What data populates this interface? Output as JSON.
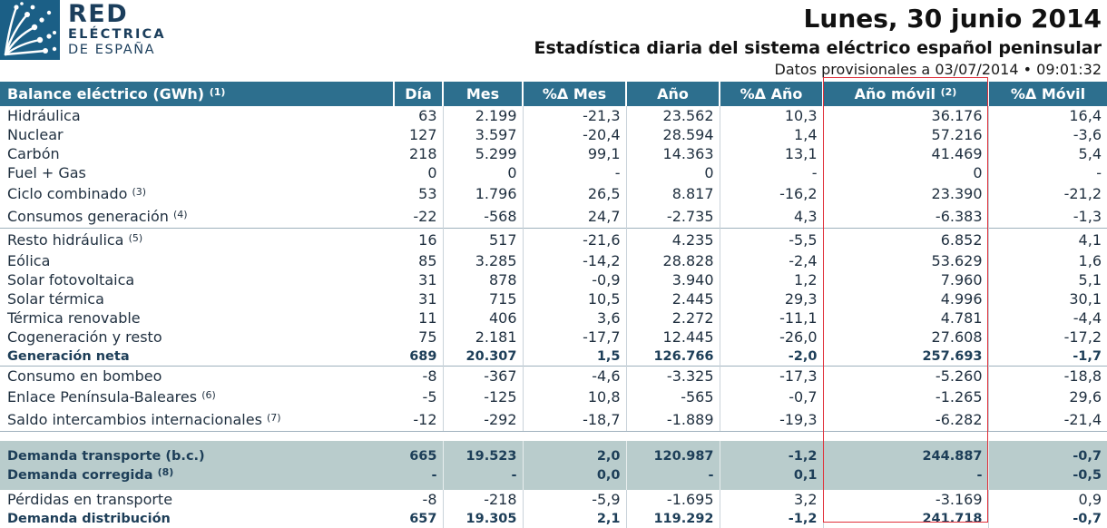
{
  "logo": {
    "line1": "RED",
    "line2": "ELÉCTRICA",
    "line3": "DE ESPAÑA",
    "icon": "network-icon"
  },
  "header": {
    "date": "Lunes, 30 junio 2014",
    "subtitle": "Estadística diaria del sistema eléctrico español peninsular",
    "provisional": "Datos provisionales a 03/07/2014 • 09:01:32"
  },
  "table": {
    "columns": [
      {
        "label": "Balance eléctrico (GWh)",
        "sup": "(1)"
      },
      {
        "label": "Día",
        "sup": ""
      },
      {
        "label": "Mes",
        "sup": ""
      },
      {
        "label": "%Δ Mes",
        "sup": ""
      },
      {
        "label": "Año",
        "sup": ""
      },
      {
        "label": "%Δ Año",
        "sup": ""
      },
      {
        "label": "Año móvil",
        "sup": "(2)"
      },
      {
        "label": "%Δ Móvil",
        "sup": ""
      }
    ],
    "rows": [
      {
        "label": "Hidráulica",
        "sup": "",
        "values": [
          "63",
          "2.199",
          "-21,3",
          "23.562",
          "10,3",
          "36.176",
          "16,4"
        ]
      },
      {
        "label": "Nuclear",
        "sup": "",
        "values": [
          "127",
          "3.597",
          "-20,4",
          "28.594",
          "1,4",
          "57.216",
          "-3,6"
        ]
      },
      {
        "label": "Carbón",
        "sup": "",
        "values": [
          "218",
          "5.299",
          "99,1",
          "14.363",
          "13,1",
          "41.469",
          "5,4"
        ]
      },
      {
        "label": "Fuel + Gas",
        "sup": "",
        "values": [
          "0",
          "0",
          "-",
          "0",
          "-",
          "0",
          "-"
        ]
      },
      {
        "label": "Ciclo combinado",
        "sup": "(3)",
        "values": [
          "53",
          "1.796",
          "26,5",
          "8.817",
          "-16,2",
          "23.390",
          "-21,2"
        ]
      },
      {
        "label": "Consumos generación",
        "sup": "(4)",
        "values": [
          "-22",
          "-568",
          "24,7",
          "-2.735",
          "4,3",
          "-6.383",
          "-1,3"
        ]
      },
      {
        "label": "Resto hidráulica",
        "sup": "(5)",
        "values": [
          "16",
          "517",
          "-21,6",
          "4.235",
          "-5,5",
          "6.852",
          "4,1"
        ]
      },
      {
        "label": "Eólica",
        "sup": "",
        "values": [
          "85",
          "3.285",
          "-14,2",
          "28.828",
          "-2,4",
          "53.629",
          "1,6"
        ]
      },
      {
        "label": "Solar fotovoltaica",
        "sup": "",
        "values": [
          "31",
          "878",
          "-0,9",
          "3.940",
          "1,2",
          "7.960",
          "5,1"
        ]
      },
      {
        "label": "Solar térmica",
        "sup": "",
        "values": [
          "31",
          "715",
          "10,5",
          "2.445",
          "29,3",
          "4.996",
          "30,1"
        ]
      },
      {
        "label": "Térmica renovable",
        "sup": "",
        "values": [
          "11",
          "406",
          "3,6",
          "2.272",
          "-11,1",
          "4.781",
          "-4,4"
        ]
      },
      {
        "label": "Cogeneración y resto",
        "sup": "",
        "values": [
          "75",
          "2.181",
          "-17,7",
          "12.445",
          "-26,0",
          "27.608",
          "-17,2"
        ]
      },
      {
        "label": "Generación neta",
        "sup": "",
        "values": [
          "689",
          "20.307",
          "1,5",
          "126.766",
          "-2,0",
          "257.693",
          "-1,7"
        ]
      },
      {
        "label": "Consumo en bombeo",
        "sup": "",
        "values": [
          "-8",
          "-367",
          "-4,6",
          "-3.325",
          "-17,3",
          "-5.260",
          "-18,8"
        ]
      },
      {
        "label": "Enlace Península-Baleares",
        "sup": "(6)",
        "values": [
          "-5",
          "-125",
          "10,8",
          "-565",
          "-0,7",
          "-1.265",
          "29,6"
        ]
      },
      {
        "label": "Saldo intercambios internacionales",
        "sup": "(7)",
        "values": [
          "-12",
          "-292",
          "-18,7",
          "-1.889",
          "-19,3",
          "-6.282",
          "-21,4"
        ]
      },
      {
        "label": "Demanda transporte (b.c.)",
        "sup": "",
        "values": [
          "665",
          "19.523",
          "2,0",
          "120.987",
          "-1,2",
          "244.887",
          "-0,7"
        ]
      },
      {
        "label": "Demanda corregida",
        "sup": "(8)",
        "values": [
          "-",
          "-",
          "0,0",
          "-",
          "0,1",
          "-",
          "-0,5"
        ]
      },
      {
        "label": "Pérdidas en transporte",
        "sup": "",
        "values": [
          "-8",
          "-218",
          "-5,9",
          "-1.695",
          "3,2",
          "-3.169",
          "0,9"
        ]
      },
      {
        "label": "Demanda distribución",
        "sup": "",
        "values": [
          "657",
          "19.305",
          "2,1",
          "119.292",
          "-1,2",
          "241.718",
          "-0,7"
        ]
      }
    ]
  },
  "colors": {
    "header_bg": "#2d6f8e",
    "shaded_bg": "#b9cccc",
    "highlight": "#e0303a",
    "brand": "#1b5f86"
  }
}
